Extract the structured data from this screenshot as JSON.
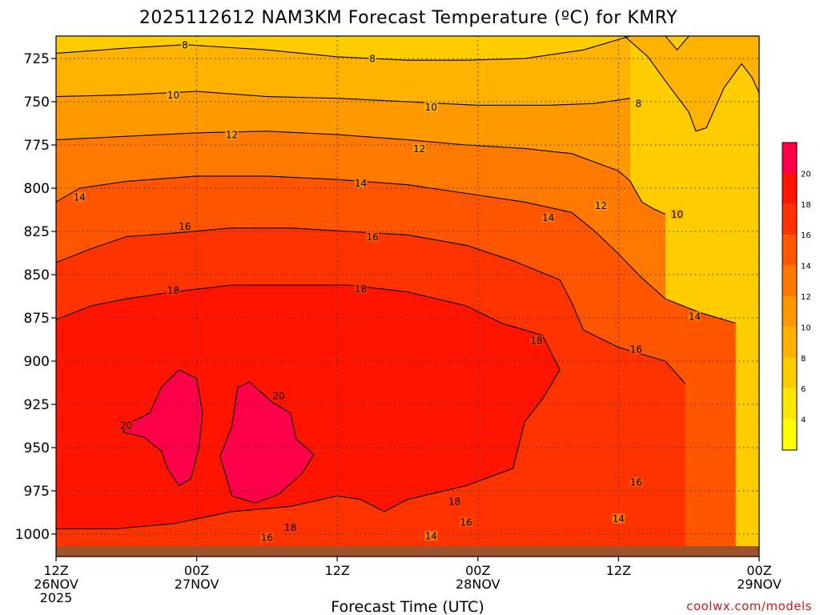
{
  "title": "2025112612 NAM3KM Forecast Temperature (ºC) for KMRY",
  "credit": "coolwx.com/models",
  "chart_data": {
    "type": "heatmap",
    "title": "2025112612 NAM3KM Forecast Temperature (ºC) for KMRY",
    "xlabel": "Forecast Time (UTC)",
    "ylabel": "",
    "x_ticks": [
      {
        "hour": 0,
        "lines": [
          "12Z",
          "26NOV",
          "2025"
        ]
      },
      {
        "hour": 12,
        "lines": [
          "00Z",
          "27NOV"
        ]
      },
      {
        "hour": 24,
        "lines": [
          "12Z"
        ]
      },
      {
        "hour": 36,
        "lines": [
          "00Z",
          "28NOV"
        ]
      },
      {
        "hour": 48,
        "lines": [
          "12Z"
        ]
      },
      {
        "hour": 60,
        "lines": [
          "00Z",
          "29NOV"
        ]
      }
    ],
    "xlim_hours": [
      0,
      60
    ],
    "y_ticks": [
      "725",
      "750",
      "775",
      "800",
      "825",
      "850",
      "875",
      "900",
      "925",
      "950",
      "975",
      "1000"
    ],
    "ylim": [
      1013,
      712
    ],
    "colorbar": {
      "labels": [
        "4",
        "6",
        "8",
        "10",
        "12",
        "14",
        "16",
        "18",
        "20"
      ],
      "bins": [
        {
          "from": 2,
          "to": 4,
          "color": "#ffff00"
        },
        {
          "from": 4,
          "to": 6,
          "color": "#ffe600"
        },
        {
          "from": 6,
          "to": 8,
          "color": "#ffcc00"
        },
        {
          "from": 8,
          "to": 10,
          "color": "#ffb300"
        },
        {
          "from": 10,
          "to": 12,
          "color": "#ff9900"
        },
        {
          "from": 12,
          "to": 14,
          "color": "#ff7800"
        },
        {
          "from": 14,
          "to": 16,
          "color": "#ff5500"
        },
        {
          "from": 16,
          "to": 18,
          "color": "#ff3300"
        },
        {
          "from": 18,
          "to": 20,
          "color": "#ff1400"
        },
        {
          "from": 20,
          "to": 22,
          "color": "#ff0048"
        }
      ]
    },
    "ground_color": "#a0522d",
    "ground_pressure": 1007,
    "contours": [
      {
        "level": 8,
        "points": [
          [
            0,
            722
          ],
          [
            6,
            719
          ],
          [
            11,
            717
          ],
          [
            18,
            720
          ],
          [
            24,
            724
          ],
          [
            30,
            726
          ],
          [
            35,
            726
          ],
          [
            40,
            725
          ],
          [
            45,
            720
          ],
          [
            49,
            712
          ]
        ]
      },
      {
        "level": 10,
        "points": [
          [
            0,
            747
          ],
          [
            6,
            746
          ],
          [
            12,
            744
          ],
          [
            18,
            747
          ],
          [
            24,
            748
          ],
          [
            30,
            750
          ],
          [
            36,
            752
          ],
          [
            42,
            752
          ],
          [
            46,
            751
          ],
          [
            49,
            748
          ]
        ]
      },
      {
        "level": 12,
        "points": [
          [
            0,
            772
          ],
          [
            6,
            770
          ],
          [
            12,
            768
          ],
          [
            18,
            767
          ],
          [
            24,
            769
          ],
          [
            30,
            772
          ],
          [
            35,
            775
          ],
          [
            40,
            777
          ],
          [
            44,
            780
          ],
          [
            46,
            785
          ],
          [
            48,
            790
          ],
          [
            49,
            796
          ],
          [
            50,
            808
          ],
          [
            51,
            812
          ],
          [
            52,
            815
          ]
        ]
      },
      {
        "level": 14,
        "points": [
          [
            0,
            808
          ],
          [
            2,
            800
          ],
          [
            6,
            796
          ],
          [
            12,
            793
          ],
          [
            18,
            793
          ],
          [
            24,
            795
          ],
          [
            30,
            798
          ],
          [
            35,
            803
          ],
          [
            40,
            808
          ],
          [
            44,
            814
          ],
          [
            46,
            825
          ],
          [
            48,
            838
          ],
          [
            50,
            852
          ],
          [
            52,
            864
          ],
          [
            55,
            872
          ],
          [
            58,
            878
          ]
        ]
      },
      {
        "level": 16,
        "points": [
          [
            0,
            843
          ],
          [
            3,
            835
          ],
          [
            6,
            828
          ],
          [
            10,
            826
          ],
          [
            15,
            823
          ],
          [
            20,
            823
          ],
          [
            25,
            825
          ],
          [
            30,
            827
          ],
          [
            35,
            833
          ],
          [
            39,
            842
          ],
          [
            43,
            853
          ],
          [
            44,
            866
          ],
          [
            45,
            882
          ],
          [
            48,
            892
          ],
          [
            52,
            900
          ],
          [
            53.7,
            913
          ]
        ]
      },
      {
        "level": 18,
        "points": [
          [
            0,
            876
          ],
          [
            3,
            868
          ],
          [
            6,
            864
          ],
          [
            10,
            860
          ],
          [
            15,
            856
          ],
          [
            20,
            856
          ],
          [
            25,
            856
          ],
          [
            30,
            860
          ],
          [
            35,
            868
          ],
          [
            38,
            878
          ],
          [
            41.5,
            885
          ],
          [
            43,
            905
          ],
          [
            41.5,
            922
          ],
          [
            40,
            935
          ],
          [
            39,
            962
          ],
          [
            35,
            972
          ],
          [
            30,
            980
          ],
          [
            28,
            987
          ],
          [
            26,
            980
          ],
          [
            24,
            978
          ],
          [
            20,
            984
          ],
          [
            15,
            987
          ],
          [
            10,
            994
          ],
          [
            5,
            997
          ],
          [
            0,
            997
          ]
        ]
      }
    ],
    "pockets": [
      {
        "level": 20,
        "points": [
          [
            5.7,
            941
          ],
          [
            6.5,
            935
          ],
          [
            8,
            930
          ],
          [
            9,
            915
          ],
          [
            10.5,
            905
          ],
          [
            12,
            910
          ],
          [
            12.5,
            930
          ],
          [
            12.2,
            950
          ],
          [
            11.5,
            968
          ],
          [
            10.5,
            972
          ],
          [
            9.5,
            962
          ],
          [
            9,
            952
          ],
          [
            7.5,
            944
          ]
        ]
      },
      {
        "level": 20,
        "points": [
          [
            15.5,
            915
          ],
          [
            16.5,
            912
          ],
          [
            17.5,
            918
          ],
          [
            18.5,
            924
          ],
          [
            20,
            930
          ],
          [
            20.5,
            945
          ],
          [
            22,
            954
          ],
          [
            21,
            965
          ],
          [
            19,
            977
          ],
          [
            17,
            982
          ],
          [
            15,
            978
          ],
          [
            14,
            955
          ],
          [
            15,
            938
          ]
        ]
      },
      {
        "level": 8,
        "points": [
          [
            48.5,
            712
          ],
          [
            50.5,
            724
          ],
          [
            52,
            738
          ],
          [
            54,
            756
          ],
          [
            54.6,
            767
          ],
          [
            55.5,
            765
          ],
          [
            57,
            742
          ],
          [
            58.5,
            728
          ],
          [
            59.4,
            736
          ],
          [
            60,
            745
          ],
          [
            60,
            712
          ]
        ]
      },
      {
        "level": 6,
        "points": [
          [
            52,
            712
          ],
          [
            53,
            720
          ],
          [
            54,
            712
          ]
        ]
      }
    ],
    "contour_labels": [
      {
        "text": "8",
        "hour": 11,
        "p": 717
      },
      {
        "text": "8",
        "hour": 27,
        "p": 725
      },
      {
        "text": "8",
        "hour": 49.7,
        "p": 751
      },
      {
        "text": "10",
        "hour": 10,
        "p": 746
      },
      {
        "text": "10",
        "hour": 32,
        "p": 753
      },
      {
        "text": "10",
        "hour": 53,
        "p": 815
      },
      {
        "text": "12",
        "hour": 15,
        "p": 769
      },
      {
        "text": "12",
        "hour": 31,
        "p": 777
      },
      {
        "text": "12",
        "hour": 46.5,
        "p": 810
      },
      {
        "text": "14",
        "hour": 2,
        "p": 805
      },
      {
        "text": "14",
        "hour": 26,
        "p": 797
      },
      {
        "text": "14",
        "hour": 42,
        "p": 817
      },
      {
        "text": "14",
        "hour": 54.5,
        "p": 874
      },
      {
        "text": "14",
        "hour": 48,
        "p": 991
      },
      {
        "text": "14",
        "hour": 32,
        "p": 1001
      },
      {
        "text": "16",
        "hour": 11,
        "p": 822
      },
      {
        "text": "16",
        "hour": 27,
        "p": 828
      },
      {
        "text": "16",
        "hour": 49.5,
        "p": 893
      },
      {
        "text": "16",
        "hour": 49.5,
        "p": 970
      },
      {
        "text": "16",
        "hour": 35,
        "p": 993
      },
      {
        "text": "16",
        "hour": 18,
        "p": 1002
      },
      {
        "text": "18",
        "hour": 10,
        "p": 859
      },
      {
        "text": "18",
        "hour": 26,
        "p": 858
      },
      {
        "text": "18",
        "hour": 41,
        "p": 888
      },
      {
        "text": "18",
        "hour": 34,
        "p": 981
      },
      {
        "text": "18",
        "hour": 20,
        "p": 996
      },
      {
        "text": "20",
        "hour": 6,
        "p": 937
      },
      {
        "text": "20",
        "hour": 19,
        "p": 920
      }
    ]
  }
}
